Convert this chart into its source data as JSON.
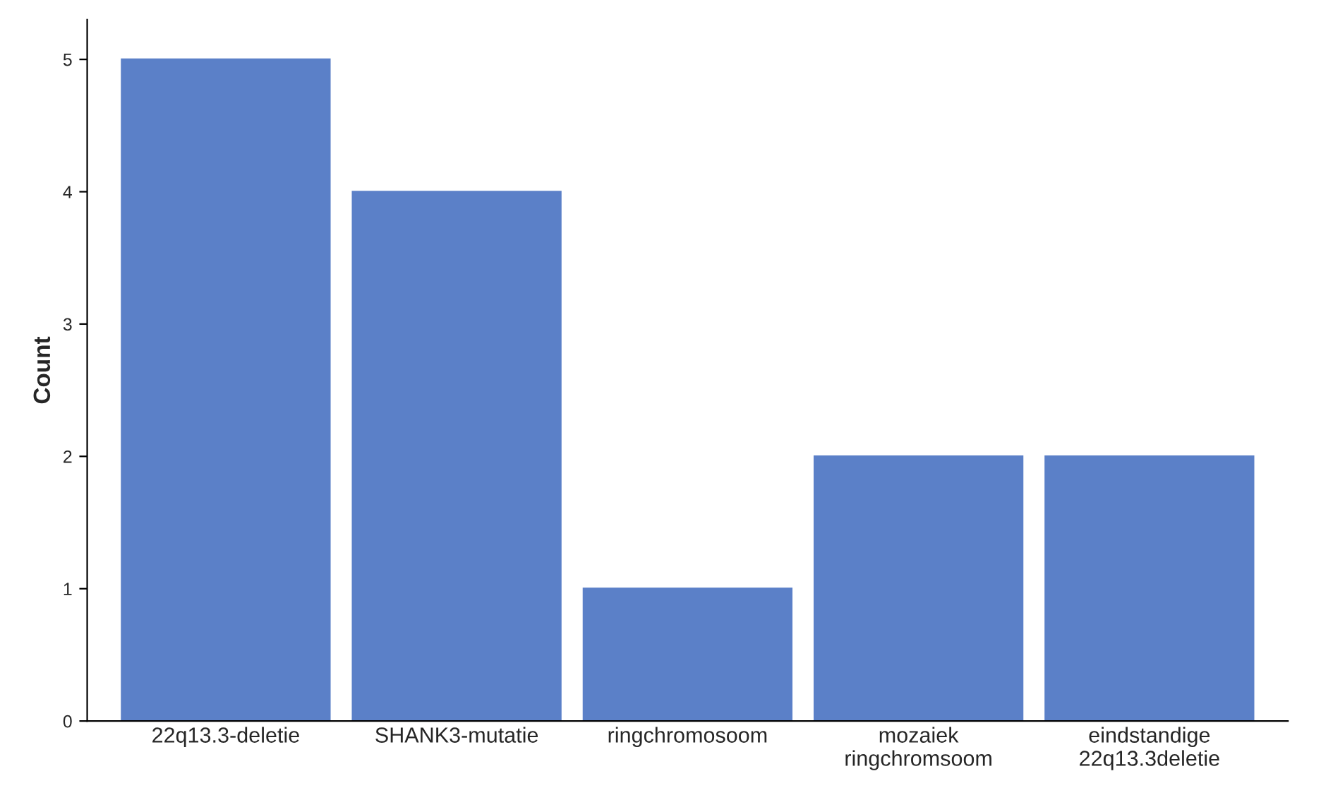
{
  "chart_data": {
    "type": "bar",
    "ylabel": "Count",
    "categories": [
      "22q13.3-deletie",
      "SHANK3-mutatie",
      "ringchromosoom",
      "mozaiek\nringchromsoom",
      "eindstandige\n22q13.3deletie"
    ],
    "values": [
      5,
      4,
      1,
      2,
      2
    ],
    "color": "#5b80c8",
    "ylim": [
      0,
      5.3
    ],
    "yticks": [
      0,
      1,
      2,
      3,
      4,
      5
    ],
    "grid": false,
    "legend": false
  }
}
